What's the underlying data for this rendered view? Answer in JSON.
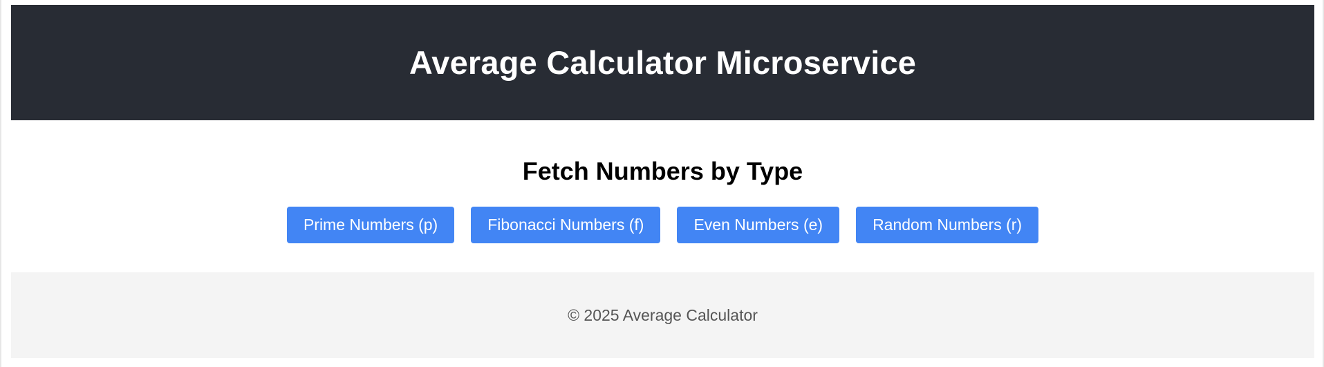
{
  "header": {
    "title": "Average Calculator Microservice"
  },
  "main": {
    "section_title": "Fetch Numbers by Type",
    "buttons": [
      {
        "label": "Prime Numbers (p)"
      },
      {
        "label": "Fibonacci Numbers (f)"
      },
      {
        "label": "Even Numbers (e)"
      },
      {
        "label": "Random Numbers (r)"
      }
    ]
  },
  "footer": {
    "text": "© 2025 Average Calculator"
  },
  "colors": {
    "header_bg": "#282c34",
    "button_bg": "#4285f4",
    "footer_bg": "#f4f4f4"
  }
}
